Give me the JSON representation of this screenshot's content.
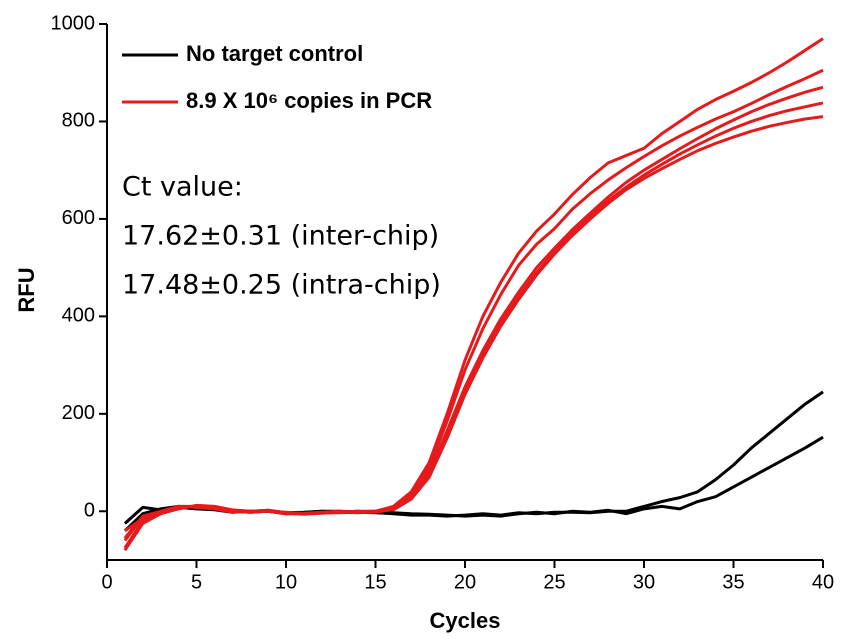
{
  "chart_data": {
    "type": "line",
    "x_label": "Cycles",
    "y_label": "RFU",
    "annotations": [
      "Ct value:",
      "17.62±0.31 (inter-chip)",
      "17.48±0.25 (intra-chip)"
    ],
    "x": [
      1,
      2,
      3,
      4,
      5,
      6,
      7,
      8,
      9,
      10,
      11,
      12,
      13,
      14,
      15,
      16,
      17,
      18,
      19,
      20,
      21,
      22,
      23,
      24,
      25,
      26,
      27,
      28,
      29,
      30,
      31,
      32,
      33,
      34,
      35,
      36,
      37,
      38,
      39,
      40
    ],
    "xlim": [
      0,
      40
    ],
    "xticks": [
      0,
      5,
      10,
      15,
      20,
      25,
      30,
      35,
      40
    ],
    "ylim": [
      -100,
      1000
    ],
    "yticks": [
      0,
      200,
      400,
      600,
      800,
      1000
    ],
    "legend": "upper left",
    "series": [
      {
        "name": "No target control",
        "color": "#000000",
        "values": [
          -25,
          8,
          3,
          8,
          5,
          3,
          -2,
          0,
          0,
          -3,
          -2,
          0,
          0,
          -2,
          -3,
          -5,
          -8,
          -8,
          -10,
          -8,
          -5,
          -8,
          -3,
          -5,
          -2,
          -2,
          -3,
          0,
          0,
          10,
          20,
          28,
          40,
          65,
          95,
          130,
          160,
          190,
          220,
          245
        ]
      },
      {
        "name": "No target control",
        "color": "#000000",
        "values": [
          -40,
          -5,
          5,
          10,
          8,
          5,
          0,
          -2,
          0,
          -5,
          -3,
          0,
          -2,
          0,
          -2,
          -3,
          -5,
          -6,
          -8,
          -10,
          -8,
          -10,
          -5,
          -2,
          -5,
          0,
          -2,
          2,
          -5,
          5,
          10,
          5,
          20,
          30,
          50,
          70,
          90,
          110,
          130,
          152
        ]
      },
      {
        "name": "8.9 X 10⁶ copies in PCR",
        "color": "#e41a1c",
        "values": [
          -55,
          -10,
          0,
          10,
          10,
          5,
          0,
          0,
          2,
          -3,
          -5,
          -3,
          -2,
          -2,
          0,
          10,
          40,
          100,
          200,
          310,
          400,
          470,
          530,
          575,
          610,
          650,
          685,
          715,
          730,
          745,
          775,
          800,
          825,
          845,
          862,
          880,
          900,
          922,
          946,
          970
        ]
      },
      {
        "name": "8.9 X 10⁶ copies in PCR",
        "color": "#e41a1c",
        "values": [
          -40,
          -15,
          -2,
          5,
          12,
          8,
          2,
          0,
          0,
          -2,
          -5,
          -3,
          -2,
          0,
          0,
          8,
          35,
          90,
          185,
          290,
          375,
          445,
          505,
          548,
          580,
          620,
          652,
          680,
          705,
          728,
          750,
          770,
          788,
          805,
          820,
          837,
          855,
          872,
          888,
          905
        ]
      },
      {
        "name": "8.9 X 10⁶ copies in PCR",
        "color": "#e41a1c",
        "values": [
          -75,
          -20,
          -5,
          8,
          10,
          6,
          0,
          -2,
          0,
          -5,
          -5,
          -3,
          -3,
          -2,
          -2,
          5,
          30,
          80,
          165,
          255,
          330,
          395,
          450,
          500,
          540,
          578,
          612,
          645,
          675,
          700,
          722,
          744,
          765,
          785,
          803,
          820,
          835,
          848,
          860,
          870
        ]
      },
      {
        "name": "8.9 X 10⁶ copies in PCR",
        "color": "#e41a1c",
        "values": [
          -60,
          -12,
          0,
          10,
          8,
          5,
          -2,
          0,
          2,
          -3,
          -4,
          -2,
          0,
          -1,
          0,
          5,
          28,
          75,
          155,
          245,
          320,
          385,
          440,
          490,
          532,
          570,
          605,
          637,
          665,
          690,
          712,
          733,
          752,
          770,
          786,
          800,
          812,
          822,
          830,
          838
        ]
      },
      {
        "name": "8.9 X 10⁶ copies in PCR",
        "color": "#e41a1c",
        "values": [
          -80,
          -25,
          -5,
          5,
          12,
          10,
          3,
          0,
          0,
          -4,
          -6,
          -4,
          -2,
          -3,
          -1,
          3,
          25,
          70,
          150,
          240,
          315,
          380,
          435,
          485,
          528,
          566,
          600,
          632,
          660,
          683,
          703,
          722,
          740,
          755,
          768,
          780,
          790,
          798,
          805,
          810
        ]
      }
    ]
  }
}
